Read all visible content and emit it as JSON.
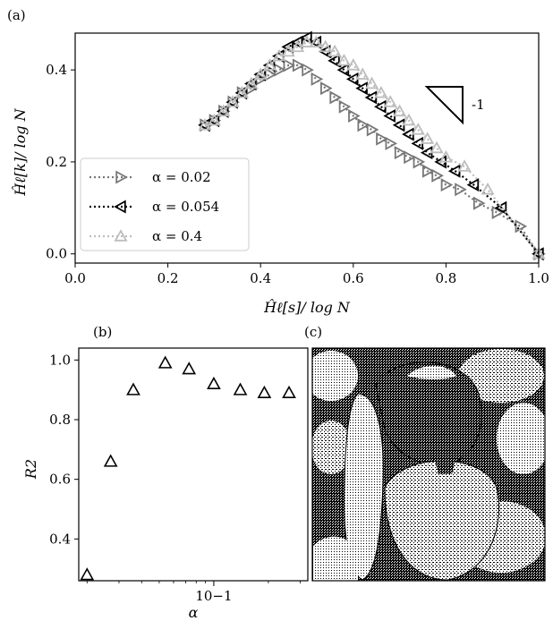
{
  "panels": {
    "a": "(a)",
    "b": "(b)",
    "c": "(c)"
  },
  "slope_annotation": "-1",
  "colors": {
    "series_0": "#777777",
    "series_1": "#000000",
    "series_2": "#bdbdbd"
  },
  "chart_data": [
    {
      "type": "line",
      "panel": "(a)",
      "xlabel": "Ĥℓ[s]/ log N",
      "ylabel": "Ĥℓ[k]/ log N",
      "xlim": [
        0,
        1.0
      ],
      "ylim": [
        -0.02,
        0.48
      ],
      "xticks": [
        "0.0",
        "0.2",
        "0.4",
        "0.6",
        "0.8",
        "1.0"
      ],
      "yticks": [
        "0.0",
        "0.2",
        "0.4"
      ],
      "legend_position": "lower-left",
      "series": [
        {
          "name": "α = 0.02",
          "marker": "triangle-right",
          "line": "dotted",
          "x": [
            0.28,
            0.3,
            0.32,
            0.34,
            0.36,
            0.38,
            0.4,
            0.42,
            0.44,
            0.46,
            0.48,
            0.5,
            0.52,
            0.54,
            0.56,
            0.58,
            0.6,
            0.62,
            0.64,
            0.66,
            0.68,
            0.7,
            0.72,
            0.74,
            0.76,
            0.78,
            0.8,
            0.83,
            0.87,
            0.91,
            0.96,
            1.0
          ],
          "y": [
            0.28,
            0.29,
            0.31,
            0.33,
            0.35,
            0.36,
            0.38,
            0.39,
            0.4,
            0.41,
            0.41,
            0.4,
            0.38,
            0.36,
            0.34,
            0.32,
            0.3,
            0.28,
            0.27,
            0.25,
            0.24,
            0.22,
            0.21,
            0.2,
            0.18,
            0.17,
            0.15,
            0.14,
            0.11,
            0.09,
            0.06,
            0.0
          ]
        },
        {
          "name": "α = 0.054",
          "marker": "triangle-left",
          "line": "dotted",
          "x": [
            0.28,
            0.3,
            0.32,
            0.34,
            0.36,
            0.38,
            0.4,
            0.42,
            0.44,
            0.46,
            0.48,
            0.5,
            0.52,
            0.54,
            0.56,
            0.58,
            0.6,
            0.62,
            0.64,
            0.66,
            0.68,
            0.7,
            0.72,
            0.74,
            0.76,
            0.79,
            0.82,
            0.86,
            0.92,
            1.0
          ],
          "y": [
            0.28,
            0.29,
            0.31,
            0.33,
            0.35,
            0.37,
            0.39,
            0.41,
            0.43,
            0.45,
            0.46,
            0.47,
            0.46,
            0.44,
            0.42,
            0.4,
            0.38,
            0.36,
            0.34,
            0.32,
            0.3,
            0.28,
            0.26,
            0.24,
            0.22,
            0.2,
            0.18,
            0.15,
            0.1,
            0.0
          ]
        },
        {
          "name": "α = 0.4",
          "marker": "triangle-up",
          "line": "dotted",
          "x": [
            0.28,
            0.3,
            0.32,
            0.34,
            0.36,
            0.38,
            0.4,
            0.42,
            0.44,
            0.46,
            0.48,
            0.5,
            0.52,
            0.54,
            0.56,
            0.58,
            0.6,
            0.62,
            0.64,
            0.66,
            0.68,
            0.7,
            0.72,
            0.74,
            0.76,
            0.78,
            0.8,
            0.84,
            0.89,
            1.0
          ],
          "y": [
            0.28,
            0.29,
            0.31,
            0.33,
            0.35,
            0.37,
            0.39,
            0.41,
            0.43,
            0.44,
            0.45,
            0.46,
            0.46,
            0.45,
            0.44,
            0.42,
            0.41,
            0.39,
            0.37,
            0.35,
            0.33,
            0.31,
            0.29,
            0.27,
            0.25,
            0.23,
            0.21,
            0.19,
            0.14,
            0.0
          ]
        }
      ]
    },
    {
      "type": "scatter",
      "panel": "(b)",
      "xlabel": "α",
      "ylabel": "R2",
      "xscale": "log",
      "xlim": [
        0.018,
        0.33
      ],
      "ylim": [
        0.26,
        1.04
      ],
      "xticks": [
        "10−1"
      ],
      "yticks": [
        "0.4",
        "0.6",
        "0.8",
        "1.0"
      ],
      "marker": "triangle-up",
      "x": [
        0.02,
        0.027,
        0.036,
        0.054,
        0.073,
        0.1,
        0.14,
        0.19,
        0.26
      ],
      "y": [
        0.28,
        0.66,
        0.9,
        0.99,
        0.97,
        0.92,
        0.9,
        0.89,
        0.89
      ]
    }
  ]
}
